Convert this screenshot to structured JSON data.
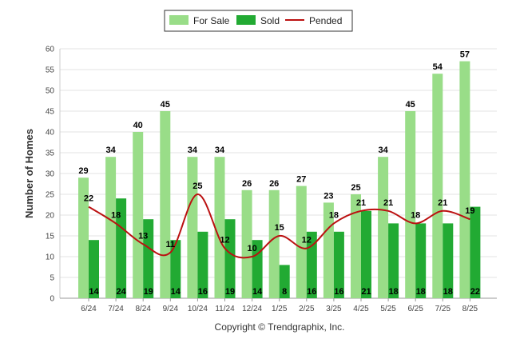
{
  "chart_data": {
    "type": "bar",
    "categories": [
      "6/24",
      "7/24",
      "8/24",
      "9/24",
      "10/24",
      "11/24",
      "12/24",
      "1/25",
      "2/25",
      "3/25",
      "4/25",
      "5/25",
      "6/25",
      "7/25",
      "8/25"
    ],
    "series": [
      {
        "name": "For Sale",
        "kind": "bar",
        "color": "#99dd88",
        "values": [
          29,
          34,
          40,
          45,
          34,
          34,
          26,
          26,
          27,
          23,
          25,
          34,
          45,
          54,
          57
        ]
      },
      {
        "name": "Sold",
        "kind": "bar",
        "color": "#22aa33",
        "values": [
          14,
          24,
          19,
          14,
          16,
          19,
          14,
          8,
          16,
          16,
          21,
          18,
          18,
          18,
          22
        ]
      },
      {
        "name": "Pended",
        "kind": "line",
        "color": "#bb1111",
        "values": [
          22,
          18,
          13,
          11,
          25,
          12,
          10,
          15,
          12,
          18,
          21,
          21,
          18,
          21,
          19
        ]
      }
    ],
    "ylabel": "Number of Homes",
    "xlabel": "",
    "ylim": [
      0,
      60
    ],
    "yticks": [
      0,
      5,
      10,
      15,
      20,
      25,
      30,
      35,
      40,
      45,
      50,
      55,
      60
    ],
    "grid": true,
    "legend_position": "top-center"
  },
  "footer": {
    "copyright": "Copyright © Trendgraphix, Inc."
  }
}
